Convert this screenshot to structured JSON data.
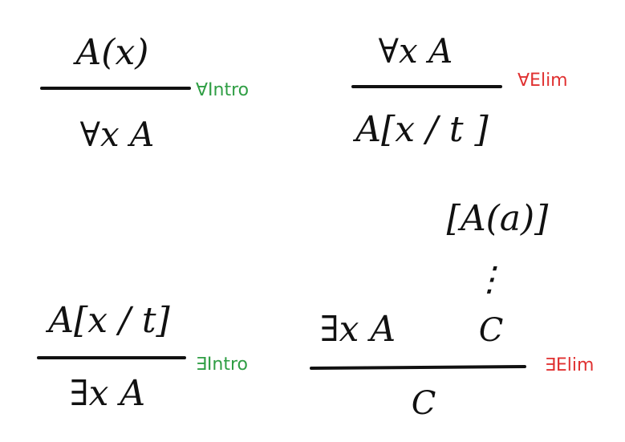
{
  "colors": {
    "ink": "#111111",
    "intro": "#2f9e44",
    "elim": "#e03131"
  },
  "rules": {
    "forall_intro": {
      "premise": "A(x)",
      "conclusion": "∀x A",
      "label": "∀Intro"
    },
    "forall_elim": {
      "premise": "∀x A",
      "conclusion": "A[x / t ]",
      "label": "∀Elim"
    },
    "exists_intro": {
      "premise": "A[x / t]",
      "conclusion": "∃x A",
      "label": "∃Intro"
    },
    "exists_elim": {
      "premise_left": "∃x A",
      "assumption": "[A(a)]",
      "ellipsis": "⋮",
      "premise_right": "C",
      "conclusion": "C",
      "label": "∃Elim"
    }
  }
}
